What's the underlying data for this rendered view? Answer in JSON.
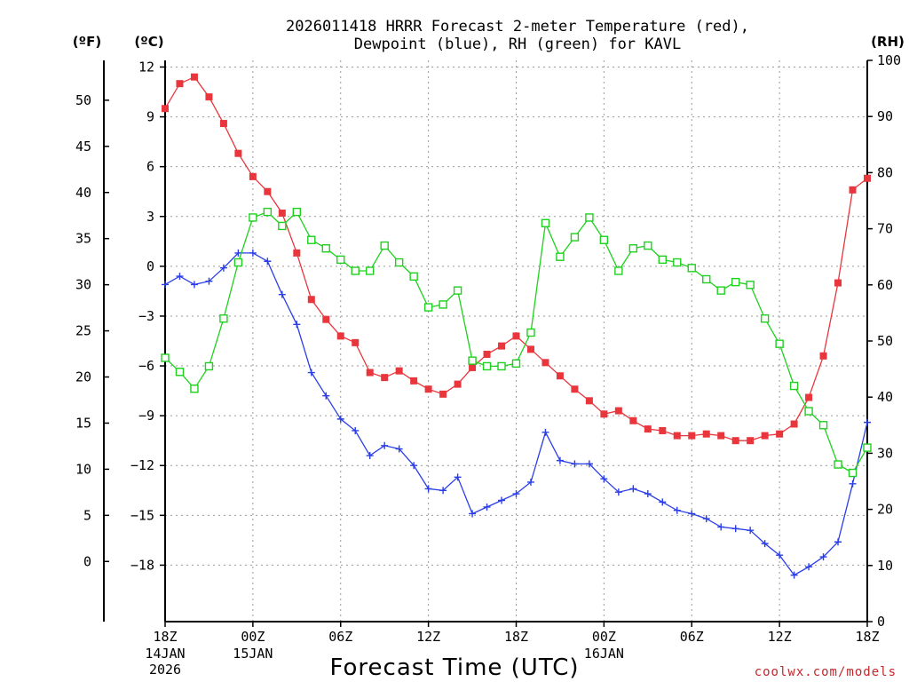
{
  "chart_data": {
    "type": "line",
    "title_lines": [
      "2026011418 HRRR Forecast 2-meter Temperature (red),",
      "Dewpoint (blue), RH (green) for KAVL"
    ],
    "units": {
      "fahrenheit": "(ºF)",
      "celsius": "(ºC)",
      "rh": "(RH)"
    },
    "xlabel": "Forecast Time (UTC)",
    "credit": "coolwx.com/models",
    "x_range_hours": [
      0,
      48
    ],
    "x_ticks": [
      {
        "hour": 0,
        "label": "18Z",
        "sub": [
          "14JAN",
          "2026"
        ]
      },
      {
        "hour": 6,
        "label": "00Z",
        "sub": [
          "15JAN"
        ]
      },
      {
        "hour": 12,
        "label": "06Z",
        "sub": []
      },
      {
        "hour": 18,
        "label": "12Z",
        "sub": []
      },
      {
        "hour": 24,
        "label": "18Z",
        "sub": []
      },
      {
        "hour": 30,
        "label": "00Z",
        "sub": [
          "16JAN"
        ]
      },
      {
        "hour": 36,
        "label": "06Z",
        "sub": []
      },
      {
        "hour": 42,
        "label": "12Z",
        "sub": []
      },
      {
        "hour": 48,
        "label": "18Z",
        "sub": []
      }
    ],
    "celsius_axis": {
      "range": [
        -21.4,
        12.4
      ],
      "ticks": [
        12,
        9,
        6,
        3,
        0,
        -3,
        -6,
        -9,
        -12,
        -15,
        -18
      ],
      "labels": [
        "12",
        "9",
        "6",
        "3",
        "0",
        "−3",
        "−6",
        "−9",
        "−12",
        "−15",
        "−18"
      ]
    },
    "fahrenheit_axis": {
      "ticks": [
        50,
        45,
        40,
        35,
        30,
        25,
        20,
        15,
        10,
        5,
        0
      ],
      "labels": [
        "50",
        "45",
        "40",
        "35",
        "30",
        "25",
        "20",
        "15",
        "10",
        "5",
        "0"
      ]
    },
    "rh_axis": {
      "range": [
        0,
        100
      ],
      "ticks": [
        100,
        90,
        80,
        70,
        60,
        50,
        40,
        30,
        20,
        10,
        0
      ],
      "labels": [
        "100",
        "90",
        "80",
        "70",
        "60",
        "50",
        "40",
        "30",
        "20",
        "10",
        "0"
      ]
    },
    "grid": true,
    "series": [
      {
        "name": "2-meter Temperature",
        "unit": "C",
        "color": "#e8363c",
        "marker": "filled-square",
        "values": [
          9.5,
          11.0,
          11.4,
          10.2,
          8.6,
          6.8,
          5.4,
          4.5,
          3.2,
          0.8,
          -2.0,
          -3.2,
          -4.2,
          -4.6,
          -6.4,
          -6.7,
          -6.3,
          -6.9,
          -7.4,
          -7.7,
          -7.1,
          -6.1,
          -5.3,
          -4.8,
          -4.2,
          -5.0,
          -5.8,
          -6.6,
          -7.4,
          -8.1,
          -8.9,
          -8.7,
          -9.3,
          -9.8,
          -9.9,
          -10.2,
          -10.2,
          -10.1,
          -10.2,
          -10.5,
          -10.5,
          -10.2,
          -10.1,
          -9.5,
          -7.9,
          -5.4,
          -1.0,
          4.6,
          5.3
        ]
      },
      {
        "name": "Dewpoint",
        "unit": "C",
        "color": "#2a3ee8",
        "marker": "plus",
        "values": [
          -1.1,
          -0.6,
          -1.1,
          -0.9,
          -0.1,
          0.8,
          0.8,
          0.3,
          -1.7,
          -3.5,
          -6.4,
          -7.8,
          -9.2,
          -9.9,
          -11.4,
          -10.8,
          -11.0,
          -12.0,
          -13.4,
          -13.5,
          -12.7,
          -14.9,
          -14.5,
          -14.1,
          -13.7,
          -13.0,
          -10.0,
          -11.7,
          -11.9,
          -11.9,
          -12.8,
          -13.6,
          -13.4,
          -13.7,
          -14.2,
          -14.7,
          -14.9,
          -15.2,
          -15.7,
          -15.8,
          -15.9,
          -16.7,
          -17.4,
          -18.6,
          -18.1,
          -17.5,
          -16.6,
          -13.1,
          -9.4
        ]
      },
      {
        "name": "RH",
        "unit": "%",
        "color": "#1ed11e",
        "marker": "open-square",
        "values": [
          47,
          44.5,
          41.5,
          45.5,
          54,
          64,
          72,
          73,
          70.5,
          73,
          68,
          66.5,
          64.5,
          62.5,
          62.5,
          67,
          64,
          61.5,
          56,
          56.5,
          59,
          46.5,
          45.5,
          45.5,
          46,
          51.5,
          71,
          65,
          68.5,
          72,
          68,
          62.5,
          66.5,
          67,
          64.5,
          64,
          63,
          61,
          59,
          60.5,
          60,
          54,
          49.5,
          42,
          37.5,
          35,
          28,
          26.5,
          31
        ]
      }
    ]
  }
}
